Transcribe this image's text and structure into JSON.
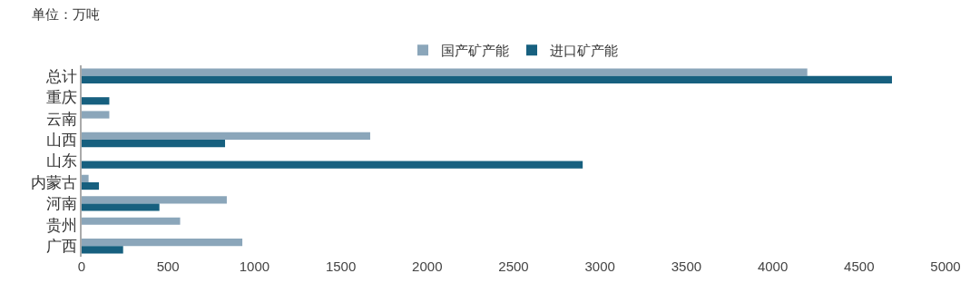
{
  "chart_data": {
    "type": "bar",
    "orientation": "horizontal",
    "annotations": [
      "单位：万吨"
    ],
    "categories": [
      "总计",
      "重庆",
      "云南",
      "山西",
      "山东",
      "内蒙古",
      "河南",
      "贵州",
      "广西"
    ],
    "series": [
      {
        "name": "国产矿产能",
        "color": "#8ba6ba",
        "values": [
          4200,
          null,
          160,
          1670,
          null,
          40,
          840,
          570,
          930
        ]
      },
      {
        "name": "进口矿产能",
        "color": "#17607f",
        "values": [
          4690,
          160,
          null,
          830,
          2900,
          100,
          450,
          null,
          240
        ]
      }
    ],
    "xlim": [
      0,
      5000
    ],
    "xticks": [
      0,
      500,
      1000,
      1500,
      2000,
      2500,
      3000,
      3500,
      4000,
      4500,
      5000
    ],
    "grid": false,
    "legend": "top"
  }
}
